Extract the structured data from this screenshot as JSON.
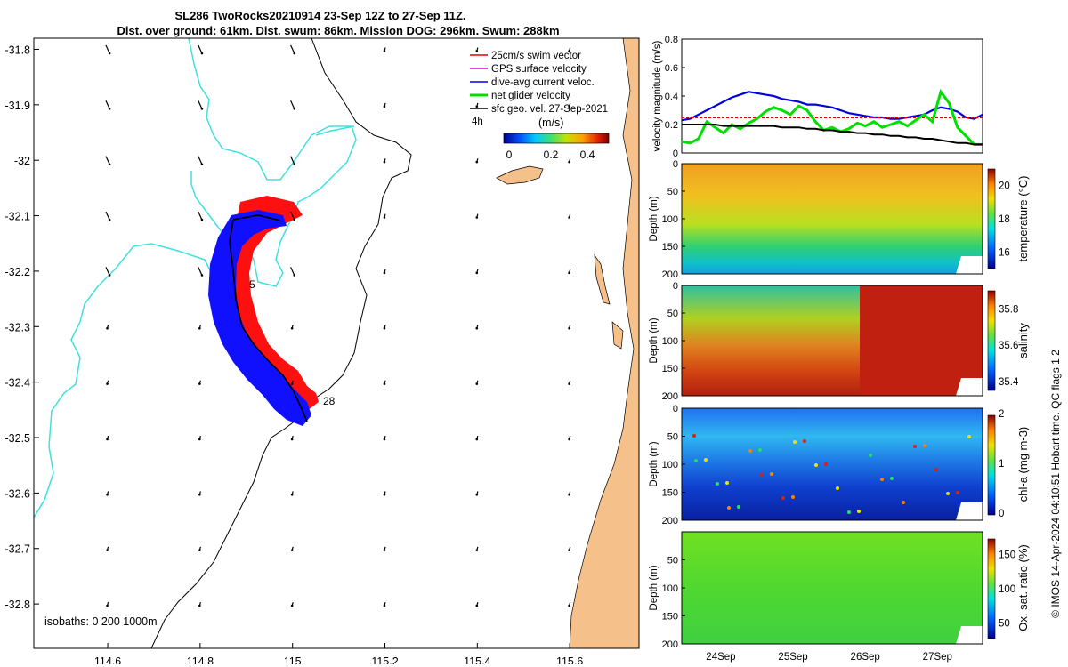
{
  "header": {
    "title_line1": "SL286 TwoRocks20210914 23-Sep 12Z to 27-Sep 11Z.",
    "title_line2": "Dist. over ground: 61km. Dist. swum: 86km. Mission DOG: 296km. Swum: 288km"
  },
  "colors": {
    "swim_vector": "#e00000",
    "gps_velocity": "#e000e0",
    "dive_avg": "#0000e0",
    "net_velocity": "#00e000",
    "sfc_geo": "#000000",
    "land": "#f5c08a",
    "isobath": "#40e0e0",
    "track_blue": "#1010ff",
    "track_red": "#ff1010"
  },
  "chart_data": [
    {
      "type": "scatter",
      "name": "map",
      "xticks": [
        "114.6",
        "114.8",
        "115",
        "115.2",
        "115.4",
        "115.6"
      ],
      "yticks": [
        "-31.8",
        "-31.9",
        "-32",
        "-32.1",
        "-32.2",
        "-32.3",
        "-32.4",
        "-32.5",
        "-32.6",
        "-32.7",
        "-32.8"
      ],
      "xlim": [
        114.44,
        115.75
      ],
      "ylim": [
        -32.88,
        -31.78
      ],
      "legend": [
        {
          "label": "25cm/s swim vector",
          "color": "#e00000"
        },
        {
          "label": "GPS surface velocity",
          "color": "#e000e0"
        },
        {
          "label": "dive-avg current veloc.",
          "color": "#0000e0"
        },
        {
          "label": "net glider velocity",
          "color": "#00e000"
        },
        {
          "label": "sfc geo. vel. 27-Sep-2021",
          "color": "#000000"
        }
      ],
      "legend_extra": "4h",
      "colorbar_unit": "(m/s)",
      "colorbar_ticks": [
        "0",
        "0.2",
        "0.4"
      ],
      "isobath_label": "isobaths: 0   200  1000m",
      "track_labels": [
        "5",
        "28"
      ]
    },
    {
      "type": "line",
      "name": "velocity",
      "ylabel": "velocity magnitude (m/s)",
      "yticks": [
        "0",
        "0.2",
        "0.4",
        "0.6",
        "0.8"
      ],
      "ylim": [
        0,
        0.8
      ],
      "x": [
        0,
        0.1,
        0.2,
        0.3,
        0.4,
        0.5,
        0.6,
        0.7,
        0.8,
        0.9,
        1.0,
        1.1,
        1.2,
        1.3,
        1.4,
        1.5,
        1.6,
        1.7,
        1.8,
        1.9,
        2.0,
        2.1,
        2.2,
        2.3,
        2.4,
        2.5,
        2.6,
        2.7,
        2.8,
        2.9,
        3.0,
        3.1,
        3.2,
        3.3,
        3.4,
        3.5,
        3.6
      ],
      "series": [
        {
          "color": "#0000e0",
          "values": [
            0.23,
            0.24,
            0.27,
            0.3,
            0.33,
            0.36,
            0.39,
            0.41,
            0.43,
            0.42,
            0.41,
            0.4,
            0.38,
            0.37,
            0.36,
            0.34,
            0.34,
            0.33,
            0.32,
            0.3,
            0.28,
            0.27,
            0.26,
            0.25,
            0.25,
            0.24,
            0.24,
            0.25,
            0.26,
            0.27,
            0.3,
            0.32,
            0.31,
            0.29,
            0.25,
            0.24,
            0.27
          ]
        },
        {
          "color": "#e00000",
          "values": [
            0.25,
            0.25,
            0.25,
            0.25,
            0.25,
            0.25,
            0.25,
            0.25,
            0.25,
            0.25,
            0.25,
            0.25,
            0.25,
            0.25,
            0.25,
            0.25,
            0.25,
            0.25,
            0.25,
            0.25,
            0.25,
            0.25,
            0.25,
            0.25,
            0.25,
            0.25,
            0.25,
            0.25,
            0.25,
            0.25,
            0.25,
            0.25,
            0.25,
            0.25,
            0.25,
            0.25,
            0.25
          ]
        },
        {
          "color": "#00e000",
          "values": [
            0.08,
            0.07,
            0.1,
            0.22,
            0.18,
            0.14,
            0.2,
            0.17,
            0.21,
            0.24,
            0.29,
            0.32,
            0.3,
            0.27,
            0.33,
            0.3,
            0.22,
            0.16,
            0.18,
            0.15,
            0.17,
            0.21,
            0.19,
            0.22,
            0.18,
            0.2,
            0.22,
            0.19,
            0.23,
            0.27,
            0.22,
            0.43,
            0.35,
            0.18,
            0.12,
            0.06,
            0.06
          ]
        },
        {
          "color": "#000000",
          "values": [
            0.2,
            0.2,
            0.2,
            0.2,
            0.2,
            0.19,
            0.19,
            0.19,
            0.19,
            0.19,
            0.19,
            0.19,
            0.18,
            0.18,
            0.18,
            0.17,
            0.17,
            0.16,
            0.16,
            0.15,
            0.15,
            0.14,
            0.14,
            0.13,
            0.13,
            0.12,
            0.12,
            0.11,
            0.11,
            0.1,
            0.1,
            0.09,
            0.08,
            0.07,
            0.07,
            0.06,
            0.06
          ]
        }
      ]
    },
    {
      "type": "heatmap",
      "name": "temperature",
      "ylabel": "Depth (m)",
      "yticks": [
        "0",
        "50",
        "100",
        "150",
        "200"
      ],
      "ylim": [
        200,
        0
      ],
      "colorbar_label": "temperature (°C)",
      "colorbar_ticks": [
        "16",
        "18",
        "20"
      ],
      "colorbar_range": [
        15,
        21
      ]
    },
    {
      "type": "heatmap",
      "name": "salinity",
      "ylabel": "Depth (m)",
      "yticks": [
        "0",
        "50",
        "100",
        "150",
        "200"
      ],
      "ylim": [
        200,
        0
      ],
      "colorbar_label": "salinity",
      "colorbar_ticks": [
        "35.4",
        "35.6",
        "35.8"
      ],
      "colorbar_range": [
        35.35,
        35.9
      ]
    },
    {
      "type": "heatmap",
      "name": "chla",
      "ylabel": "Depth (m)",
      "yticks": [
        "0",
        "50",
        "100",
        "150",
        "200"
      ],
      "ylim": [
        200,
        0
      ],
      "colorbar_label": "chl-a (mg m-3)",
      "colorbar_ticks": [
        "0",
        "1",
        "2"
      ],
      "colorbar_range": [
        0,
        2
      ]
    },
    {
      "type": "heatmap",
      "name": "oxygen",
      "ylabel": "Depth (m)",
      "yticks": [
        "50",
        "100",
        "150",
        "200"
      ],
      "ylim": [
        200,
        0
      ],
      "colorbar_label": "Ox. sat. ratio (%)",
      "colorbar_ticks": [
        "50",
        "100",
        "150"
      ],
      "colorbar_range": [
        30,
        175
      ],
      "xticks": [
        "24Sep",
        "25Sep",
        "26Sep",
        "27Sep"
      ]
    }
  ],
  "footer": {
    "credit": "© IMOS 14-Apr-2024 04:10:51 Hobart time. QC flags 1  2"
  }
}
